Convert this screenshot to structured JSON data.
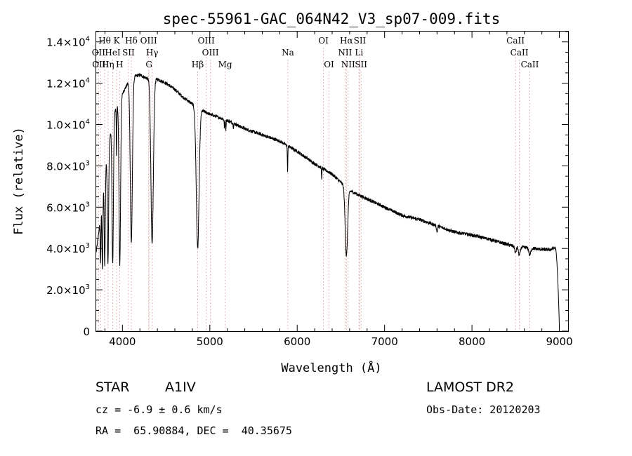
{
  "chart_data": {
    "type": "line",
    "title": "spec-55961-GAC_064N42_V3_sp07-009.fits",
    "xlabel": "Wavelength (Å)",
    "ylabel": "Flux (relative)",
    "xlim": [
      3700,
      9100
    ],
    "ylim": [
      0,
      14500
    ],
    "grid": false,
    "x_ticks": [
      {
        "value": 4000,
        "label": "4000"
      },
      {
        "value": 5000,
        "label": "5000"
      },
      {
        "value": 6000,
        "label": "6000"
      },
      {
        "value": 7000,
        "label": "7000"
      },
      {
        "value": 8000,
        "label": "8000"
      },
      {
        "value": 9000,
        "label": "9000"
      }
    ],
    "y_ticks": [
      {
        "value": 0,
        "mant": "0",
        "exp": ""
      },
      {
        "value": 2000,
        "mant": "2.0×10",
        "exp": "3"
      },
      {
        "value": 4000,
        "mant": "4.0×10",
        "exp": "3"
      },
      {
        "value": 6000,
        "mant": "6.0×10",
        "exp": "3"
      },
      {
        "value": 8000,
        "mant": "8.0×10",
        "exp": "3"
      },
      {
        "value": 10000,
        "mant": "1.0×10",
        "exp": "4"
      },
      {
        "value": 12000,
        "mant": "1.2×10",
        "exp": "4"
      },
      {
        "value": 14000,
        "mant": "1.4×10",
        "exp": "4"
      }
    ],
    "spectrum": {
      "continuum": [
        [
          3700,
          3800
        ],
        [
          3750,
          5500
        ],
        [
          3800,
          7800
        ],
        [
          3850,
          9200
        ],
        [
          3900,
          10500
        ],
        [
          4000,
          11500
        ],
        [
          4100,
          12300
        ],
        [
          4200,
          12400
        ],
        [
          4300,
          12200
        ],
        [
          4400,
          12200
        ],
        [
          4500,
          12000
        ],
        [
          4600,
          11700
        ],
        [
          4700,
          11300
        ],
        [
          4800,
          11000
        ],
        [
          4900,
          10700
        ],
        [
          5000,
          10500
        ],
        [
          5200,
          10200
        ],
        [
          5400,
          9800
        ],
        [
          5600,
          9500
        ],
        [
          5800,
          9200
        ],
        [
          6000,
          8700
        ],
        [
          6200,
          8100
        ],
        [
          6400,
          7600
        ],
        [
          6500,
          7200
        ],
        [
          6600,
          6800
        ],
        [
          6700,
          6600
        ],
        [
          6800,
          6400
        ],
        [
          7000,
          6000
        ],
        [
          7200,
          5600
        ],
        [
          7400,
          5400
        ],
        [
          7600,
          5100
        ],
        [
          7800,
          4800
        ],
        [
          8000,
          4650
        ],
        [
          8200,
          4450
        ],
        [
          8400,
          4200
        ],
        [
          8500,
          4080
        ],
        [
          8600,
          4050
        ],
        [
          8700,
          4000
        ],
        [
          8800,
          3950
        ],
        [
          8900,
          3950
        ],
        [
          8960,
          4050
        ]
      ],
      "absorption_lines": [
        {
          "center": 3750,
          "depth": 2200,
          "width": 4
        },
        {
          "center": 3771,
          "depth": 3500,
          "width": 5
        },
        {
          "center": 3798,
          "depth": 4500,
          "width": 6
        },
        {
          "center": 3835,
          "depth": 5500,
          "width": 7
        },
        {
          "center": 3889,
          "depth": 7000,
          "width": 8
        },
        {
          "center": 3933,
          "depth": 2500,
          "width": 3
        },
        {
          "center": 3970,
          "depth": 8000,
          "width": 9
        },
        {
          "center": 4102,
          "depth": 8000,
          "width": 12
        },
        {
          "center": 4340,
          "depth": 8000,
          "width": 14
        },
        {
          "center": 4861,
          "depth": 6800,
          "width": 16
        },
        {
          "center": 5167,
          "depth": 400,
          "width": 3
        },
        {
          "center": 5183,
          "depth": 500,
          "width": 3
        },
        {
          "center": 5270,
          "depth": 200,
          "width": 3
        },
        {
          "center": 5890,
          "depth": 1200,
          "width": 3
        },
        {
          "center": 6280,
          "depth": 500,
          "width": 3
        },
        {
          "center": 6563,
          "depth": 3300,
          "width": 14
        },
        {
          "center": 7600,
          "depth": 300,
          "width": 6
        },
        {
          "center": 8498,
          "depth": 300,
          "width": 8
        },
        {
          "center": 8542,
          "depth": 400,
          "width": 10
        },
        {
          "center": 8662,
          "depth": 350,
          "width": 10
        }
      ],
      "end_drop": {
        "start": 8950,
        "end": 9000,
        "to": 200
      },
      "noise": 80
    },
    "line_markers": [
      {
        "label": "Hθ",
        "x": 3797,
        "row": 0
      },
      {
        "label": "K",
        "x": 3934,
        "row": 0
      },
      {
        "label": "Hδ",
        "x": 4102,
        "row": 0
      },
      {
        "label": "OIII",
        "x": 4300,
        "row": 0
      },
      {
        "label": "OIII",
        "x": 4959,
        "row": 0
      },
      {
        "label": "OI",
        "x": 6300,
        "row": 0
      },
      {
        "label": "Hα",
        "x": 6563,
        "row": 0
      },
      {
        "label": "SII",
        "x": 6717,
        "row": 0
      },
      {
        "label": "CaII",
        "x": 8498,
        "row": 0
      },
      {
        "label": "OII",
        "x": 3727,
        "row": 1
      },
      {
        "label": "HeI",
        "x": 3889,
        "row": 1
      },
      {
        "label": "SII",
        "x": 4069,
        "row": 1
      },
      {
        "label": "Hγ",
        "x": 4340,
        "row": 1
      },
      {
        "label": "OIII",
        "x": 5007,
        "row": 1
      },
      {
        "label": "Na",
        "x": 5893,
        "row": 1
      },
      {
        "label": "NII",
        "x": 6548,
        "row": 1
      },
      {
        "label": "Li",
        "x": 6708,
        "row": 1
      },
      {
        "label": "CaII",
        "x": 8542,
        "row": 1
      },
      {
        "label": "OIII",
        "x": 3750,
        "row": 2
      },
      {
        "label": "Hη",
        "x": 3835,
        "row": 2
      },
      {
        "label": "H",
        "x": 3968,
        "row": 2
      },
      {
        "label": "G",
        "x": 4304,
        "row": 2
      },
      {
        "label": "Hβ",
        "x": 4861,
        "row": 2
      },
      {
        "label": "Mg",
        "x": 5175,
        "row": 2
      },
      {
        "label": "OI",
        "x": 6364,
        "row": 2
      },
      {
        "label": "NII",
        "x": 6583,
        "row": 2
      },
      {
        "label": "SII",
        "x": 6731,
        "row": 2
      },
      {
        "label": "CaII",
        "x": 8662,
        "row": 2
      }
    ]
  },
  "info": {
    "star_type_label": "STAR",
    "spectral_class": "A1IV",
    "survey": "LAMOST DR2",
    "cz": "cz = -6.9 ± 0.6 km/s",
    "obs_date": "Obs-Date: 20120203",
    "coords": "RA =  65.90884, DEC =  40.35675"
  },
  "colors": {
    "line": "#000000",
    "marker": "#d9a0a0",
    "background": "#ffffff"
  }
}
